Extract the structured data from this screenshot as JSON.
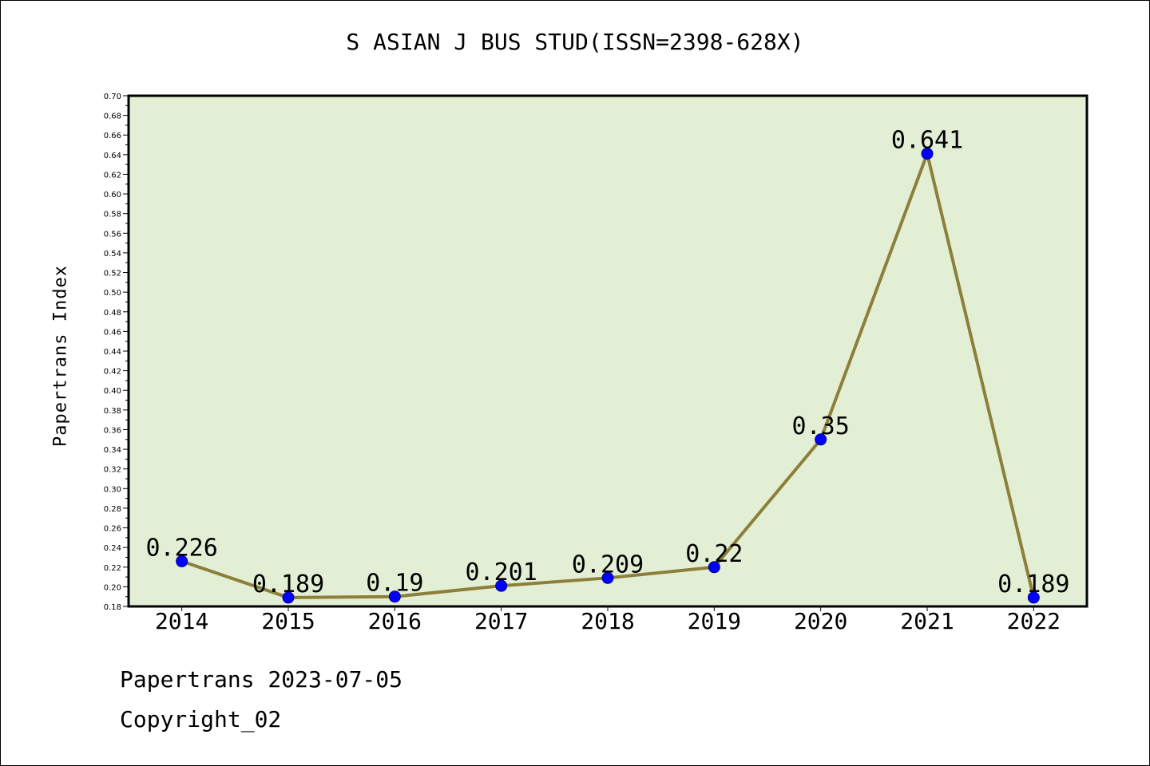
{
  "chart_data": {
    "type": "line",
    "title": "S ASIAN J BUS STUD(ISSN=2398-628X)",
    "xlabel": "",
    "ylabel": "Papertrans Index",
    "categories": [
      "2014",
      "2015",
      "2016",
      "2017",
      "2018",
      "2019",
      "2020",
      "2021",
      "2022"
    ],
    "values": [
      0.226,
      0.189,
      0.19,
      0.201,
      0.209,
      0.22,
      0.35,
      0.641,
      0.189
    ],
    "data_labels": [
      "0.226",
      "0.189",
      "0.19",
      "0.201",
      "0.209",
      "0.22",
      "0.35",
      "0.641",
      "0.189"
    ],
    "ylim": [
      0.18,
      0.7
    ],
    "ytick_step": 0.02,
    "grid": false,
    "legend": "none",
    "colors": {
      "plot_background": "#e2efd4",
      "line": "#8c7f3a",
      "marker": "#0000ff"
    }
  },
  "footer": {
    "line1": "Papertrans 2023-07-05",
    "line2": "Copyright_02"
  }
}
